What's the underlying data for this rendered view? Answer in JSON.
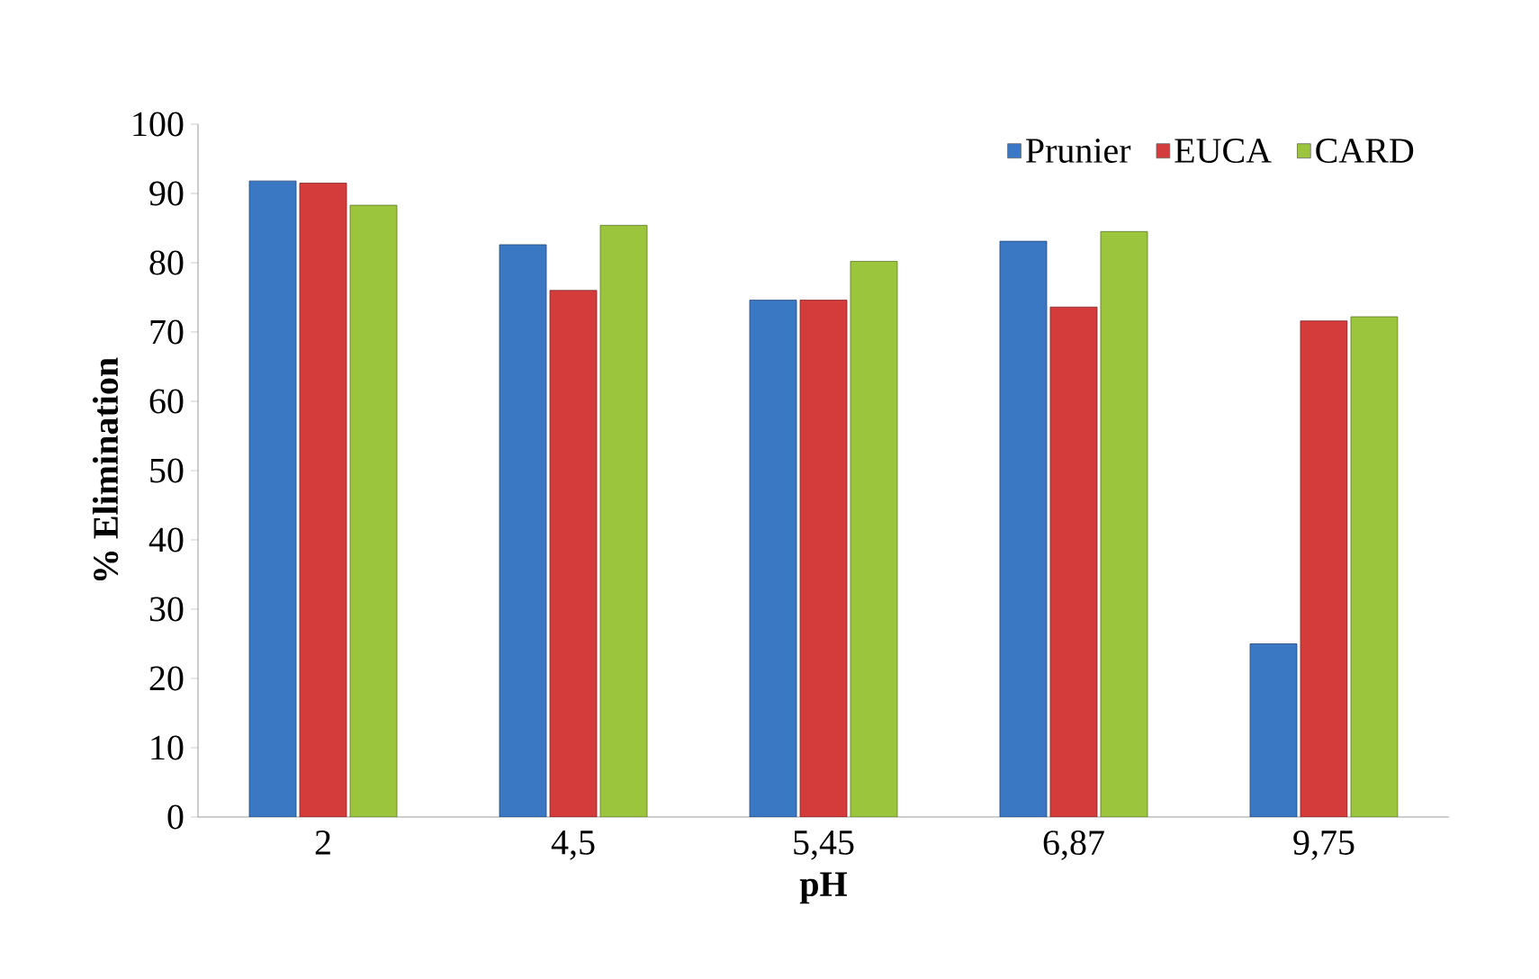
{
  "chart_data": {
    "type": "bar",
    "xlabel": "pH",
    "ylabel": "% Elimination",
    "categories": [
      "2",
      "4,5",
      "5,45",
      "6,87",
      "9,75"
    ],
    "series": [
      {
        "name": "Prunier",
        "color": "#3a78c4",
        "values": [
          91.8,
          82.6,
          74.6,
          83.1,
          25.0
        ]
      },
      {
        "name": "EUCA",
        "color": "#d43c3c",
        "values": [
          91.5,
          76.0,
          74.6,
          73.6,
          71.6
        ]
      },
      {
        "name": "CARD",
        "color": "#9bc53d",
        "values": [
          88.3,
          85.4,
          80.2,
          84.5,
          72.2
        ]
      }
    ],
    "ylim": [
      0,
      100
    ],
    "yticks": [
      0,
      10,
      20,
      30,
      40,
      50,
      60,
      70,
      80,
      90,
      100
    ],
    "grid": false,
    "legend": "top right"
  }
}
